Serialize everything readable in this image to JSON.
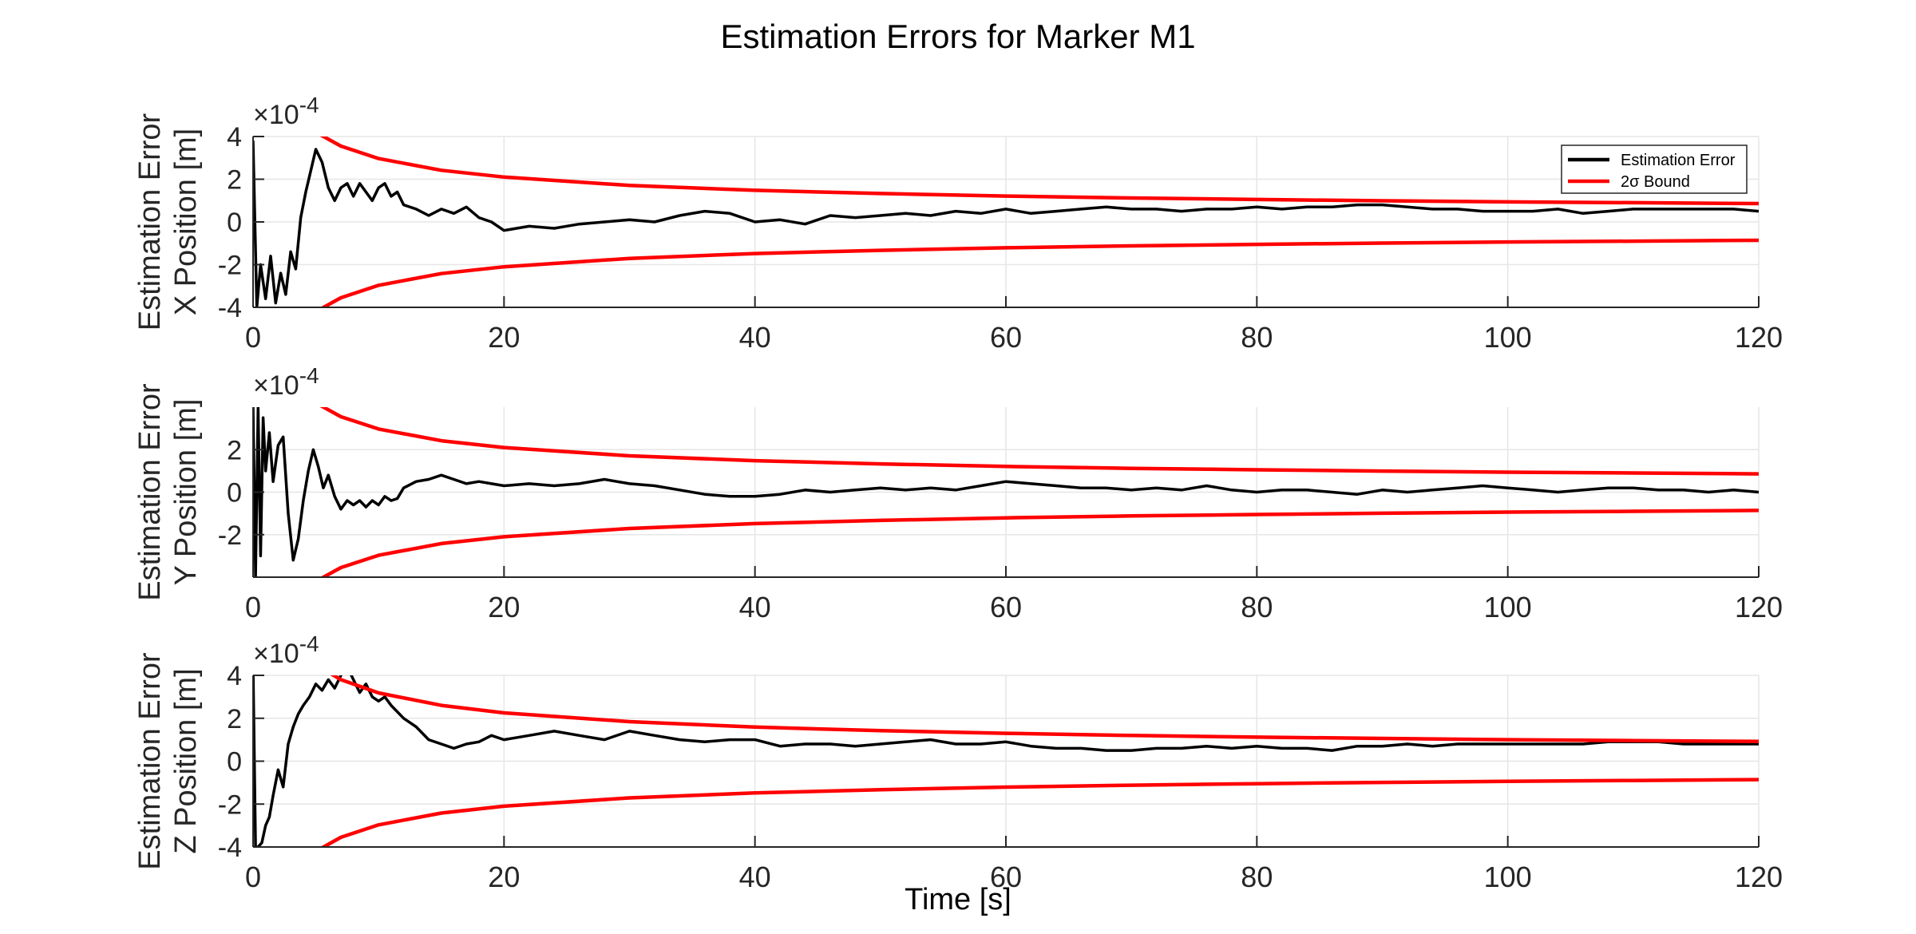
{
  "title": "Estimation Errors for Marker M1",
  "xlabel": "Time [s]",
  "legend": {
    "entries": [
      {
        "label": "Estimation Error",
        "color": "#000000"
      },
      {
        "label": "2σ Bound",
        "color": "#ff0000"
      }
    ]
  },
  "chart_data": [
    {
      "type": "line",
      "ylabel_line1": "Estimation Error",
      "ylabel_line2": "X Position [m]",
      "exponent": "×10^-4",
      "exponent_base": "×10",
      "exponent_power": "-4",
      "xlim": [
        0,
        120
      ],
      "ylim": [
        -4,
        4
      ],
      "xticks": [
        0,
        20,
        40,
        60,
        80,
        100,
        120
      ],
      "yticks": [
        -4,
        -2,
        0,
        2,
        4
      ],
      "grid": true,
      "legend_position": "top-right",
      "series": [
        {
          "name": "Estimation Error",
          "color": "#000000",
          "x": [
            0,
            0.3,
            0.6,
            1,
            1.4,
            1.8,
            2.2,
            2.6,
            3,
            3.4,
            3.8,
            4.2,
            4.6,
            5,
            5.5,
            6,
            6.5,
            7,
            7.5,
            8,
            8.5,
            9,
            9.5,
            10,
            10.5,
            11,
            11.5,
            12,
            13,
            14,
            15,
            16,
            17,
            18,
            19,
            20,
            22,
            24,
            26,
            28,
            30,
            32,
            34,
            36,
            38,
            40,
            42,
            44,
            46,
            48,
            50,
            52,
            54,
            56,
            58,
            60,
            62,
            64,
            66,
            68,
            70,
            72,
            74,
            76,
            78,
            80,
            82,
            84,
            86,
            88,
            90,
            92,
            94,
            96,
            98,
            100,
            102,
            104,
            106,
            108,
            110,
            112,
            114,
            116,
            118,
            120
          ],
          "y": [
            3.8,
            -4.0,
            -2.0,
            -3.6,
            -1.6,
            -3.8,
            -2.4,
            -3.4,
            -1.4,
            -2.2,
            0.2,
            1.4,
            2.4,
            3.4,
            2.8,
            1.6,
            1.0,
            1.6,
            1.8,
            1.2,
            1.8,
            1.4,
            1.0,
            1.6,
            1.8,
            1.2,
            1.4,
            0.8,
            0.6,
            0.3,
            0.6,
            0.4,
            0.7,
            0.2,
            0.0,
            -0.4,
            -0.2,
            -0.3,
            -0.1,
            0.0,
            0.1,
            0.0,
            0.3,
            0.5,
            0.4,
            0.0,
            0.1,
            -0.1,
            0.3,
            0.2,
            0.3,
            0.4,
            0.3,
            0.5,
            0.4,
            0.6,
            0.4,
            0.5,
            0.6,
            0.7,
            0.6,
            0.6,
            0.5,
            0.6,
            0.6,
            0.7,
            0.6,
            0.7,
            0.7,
            0.8,
            0.8,
            0.7,
            0.6,
            0.6,
            0.5,
            0.5,
            0.5,
            0.6,
            0.4,
            0.5,
            0.6,
            0.6,
            0.6,
            0.6,
            0.6,
            0.5
          ]
        },
        {
          "name": "2σ Bound",
          "color": "#ff0000",
          "x": [
            5,
            7,
            10,
            15,
            20,
            30,
            40,
            50,
            60,
            70,
            80,
            90,
            100,
            110,
            120
          ],
          "y": [
            4.2,
            3.55,
            2.97,
            2.42,
            2.1,
            1.71,
            1.48,
            1.33,
            1.21,
            1.12,
            1.05,
            0.99,
            0.94,
            0.9,
            0.86
          ]
        },
        {
          "name": "",
          "color": "#ff0000",
          "x": [
            5,
            7,
            10,
            15,
            20,
            30,
            40,
            50,
            60,
            70,
            80,
            90,
            100,
            110,
            120
          ],
          "y": [
            -4.2,
            -3.55,
            -2.97,
            -2.42,
            -2.1,
            -1.71,
            -1.48,
            -1.33,
            -1.21,
            -1.12,
            -1.05,
            -0.99,
            -0.94,
            -0.9,
            -0.86
          ]
        }
      ]
    },
    {
      "type": "line",
      "ylabel_line1": "Estimation Error",
      "ylabel_line2": "Y Position [m]",
      "exponent": "×10^-4",
      "exponent_base": "×10",
      "exponent_power": "-4",
      "xlim": [
        0,
        120
      ],
      "ylim": [
        -4,
        4
      ],
      "xticks": [
        0,
        20,
        40,
        60,
        80,
        100,
        120
      ],
      "yticks": [
        -2,
        0,
        2
      ],
      "grid": true,
      "series": [
        {
          "name": "Estimation Error",
          "color": "#000000",
          "x": [
            0,
            0.2,
            0.4,
            0.6,
            0.8,
            1.0,
            1.3,
            1.6,
            2.0,
            2.4,
            2.8,
            3.2,
            3.6,
            4.0,
            4.4,
            4.8,
            5.2,
            5.6,
            6.0,
            6.5,
            7,
            7.5,
            8,
            8.5,
            9,
            9.5,
            10,
            10.5,
            11,
            11.5,
            12,
            13,
            14,
            15,
            16,
            17,
            18,
            19,
            20,
            22,
            24,
            26,
            28,
            30,
            32,
            34,
            36,
            38,
            40,
            42,
            44,
            46,
            48,
            50,
            52,
            54,
            56,
            58,
            60,
            62,
            64,
            66,
            68,
            70,
            72,
            74,
            76,
            78,
            80,
            82,
            84,
            86,
            88,
            90,
            92,
            94,
            96,
            98,
            100,
            102,
            104,
            106,
            108,
            110,
            112,
            114,
            116,
            118,
            120
          ],
          "y": [
            4.0,
            -4.0,
            4.0,
            -3.0,
            3.5,
            1.0,
            2.8,
            0.5,
            2.2,
            2.6,
            -1.0,
            -3.2,
            -2.2,
            -0.4,
            1.0,
            2.0,
            1.2,
            0.2,
            0.8,
            -0.2,
            -0.8,
            -0.4,
            -0.6,
            -0.4,
            -0.7,
            -0.4,
            -0.6,
            -0.2,
            -0.4,
            -0.3,
            0.2,
            0.5,
            0.6,
            0.8,
            0.6,
            0.4,
            0.5,
            0.4,
            0.3,
            0.4,
            0.3,
            0.4,
            0.6,
            0.4,
            0.3,
            0.1,
            -0.1,
            -0.2,
            -0.2,
            -0.1,
            0.1,
            0.0,
            0.1,
            0.2,
            0.1,
            0.2,
            0.1,
            0.3,
            0.5,
            0.4,
            0.3,
            0.2,
            0.2,
            0.1,
            0.2,
            0.1,
            0.3,
            0.1,
            0.0,
            0.1,
            0.1,
            0.0,
            -0.1,
            0.1,
            0.0,
            0.1,
            0.2,
            0.3,
            0.2,
            0.1,
            0.0,
            0.1,
            0.2,
            0.2,
            0.1,
            0.1,
            0.0,
            0.1,
            0.0
          ]
        },
        {
          "name": "2σ Bound",
          "color": "#ff0000",
          "x": [
            5,
            7,
            10,
            15,
            20,
            30,
            40,
            50,
            60,
            70,
            80,
            90,
            100,
            110,
            120
          ],
          "y": [
            4.2,
            3.55,
            2.97,
            2.42,
            2.1,
            1.71,
            1.48,
            1.33,
            1.21,
            1.12,
            1.05,
            0.99,
            0.94,
            0.9,
            0.86
          ]
        },
        {
          "name": "",
          "color": "#ff0000",
          "x": [
            5,
            7,
            10,
            15,
            20,
            30,
            40,
            50,
            60,
            70,
            80,
            90,
            100,
            110,
            120
          ],
          "y": [
            -4.2,
            -3.55,
            -2.97,
            -2.42,
            -2.1,
            -1.71,
            -1.48,
            -1.33,
            -1.21,
            -1.12,
            -1.05,
            -0.99,
            -0.94,
            -0.9,
            -0.86
          ]
        }
      ]
    },
    {
      "type": "line",
      "ylabel_line1": "Estimation Error",
      "ylabel_line2": "Z Position [m]",
      "exponent": "×10^-4",
      "exponent_base": "×10",
      "exponent_power": "-4",
      "xlim": [
        0,
        120
      ],
      "ylim": [
        -4,
        4
      ],
      "xticks": [
        0,
        20,
        40,
        60,
        80,
        100,
        120
      ],
      "yticks": [
        -4,
        -2,
        0,
        2,
        4
      ],
      "grid": true,
      "series": [
        {
          "name": "Estimation Error",
          "color": "#000000",
          "x": [
            0,
            0.2,
            0.4,
            0.7,
            1.0,
            1.3,
            1.6,
            2.0,
            2.4,
            2.8,
            3.2,
            3.6,
            4.0,
            4.5,
            5.0,
            5.5,
            6.0,
            6.5,
            7.0,
            7.5,
            8.0,
            8.5,
            9.0,
            9.5,
            10,
            10.5,
            11,
            12,
            13,
            14,
            15,
            16,
            17,
            18,
            19,
            20,
            22,
            24,
            26,
            28,
            30,
            32,
            34,
            36,
            38,
            40,
            42,
            44,
            46,
            48,
            50,
            52,
            54,
            56,
            58,
            60,
            62,
            64,
            66,
            68,
            70,
            72,
            74,
            76,
            78,
            80,
            82,
            84,
            86,
            88,
            90,
            92,
            94,
            96,
            98,
            100,
            102,
            104,
            106,
            108,
            110,
            112,
            114,
            116,
            118,
            120
          ],
          "y": [
            4.5,
            -4.0,
            -4.0,
            -3.8,
            -3.0,
            -2.6,
            -1.6,
            -0.4,
            -1.2,
            0.8,
            1.6,
            2.2,
            2.6,
            3.0,
            3.6,
            3.3,
            3.8,
            3.4,
            4.0,
            4.4,
            3.8,
            3.2,
            3.6,
            3.0,
            2.8,
            3.0,
            2.6,
            2.0,
            1.6,
            1.0,
            0.8,
            0.6,
            0.8,
            0.9,
            1.2,
            1.0,
            1.2,
            1.4,
            1.2,
            1.0,
            1.4,
            1.2,
            1.0,
            0.9,
            1.0,
            1.0,
            0.7,
            0.8,
            0.8,
            0.7,
            0.8,
            0.9,
            1.0,
            0.8,
            0.8,
            0.9,
            0.7,
            0.6,
            0.6,
            0.5,
            0.5,
            0.6,
            0.6,
            0.7,
            0.6,
            0.7,
            0.6,
            0.6,
            0.5,
            0.7,
            0.7,
            0.8,
            0.7,
            0.8,
            0.8,
            0.8,
            0.8,
            0.8,
            0.8,
            0.9,
            0.9,
            0.9,
            0.8,
            0.8,
            0.8,
            0.8
          ]
        },
        {
          "name": "2σ Bound",
          "color": "#ff0000",
          "x": [
            5,
            7,
            10,
            15,
            20,
            30,
            40,
            50,
            60,
            70,
            80,
            90,
            100,
            110,
            120
          ],
          "y": [
            4.5,
            3.8,
            3.18,
            2.6,
            2.25,
            1.84,
            1.59,
            1.42,
            1.3,
            1.2,
            1.12,
            1.06,
            1.0,
            0.96,
            0.92
          ]
        },
        {
          "name": "",
          "color": "#ff0000",
          "x": [
            5,
            7,
            10,
            15,
            20,
            30,
            40,
            50,
            60,
            70,
            80,
            90,
            100,
            110,
            120
          ],
          "y": [
            -4.2,
            -3.55,
            -2.97,
            -2.42,
            -2.1,
            -1.71,
            -1.48,
            -1.33,
            -1.21,
            -1.12,
            -1.05,
            -0.99,
            -0.94,
            -0.9,
            -0.86
          ]
        }
      ]
    }
  ]
}
